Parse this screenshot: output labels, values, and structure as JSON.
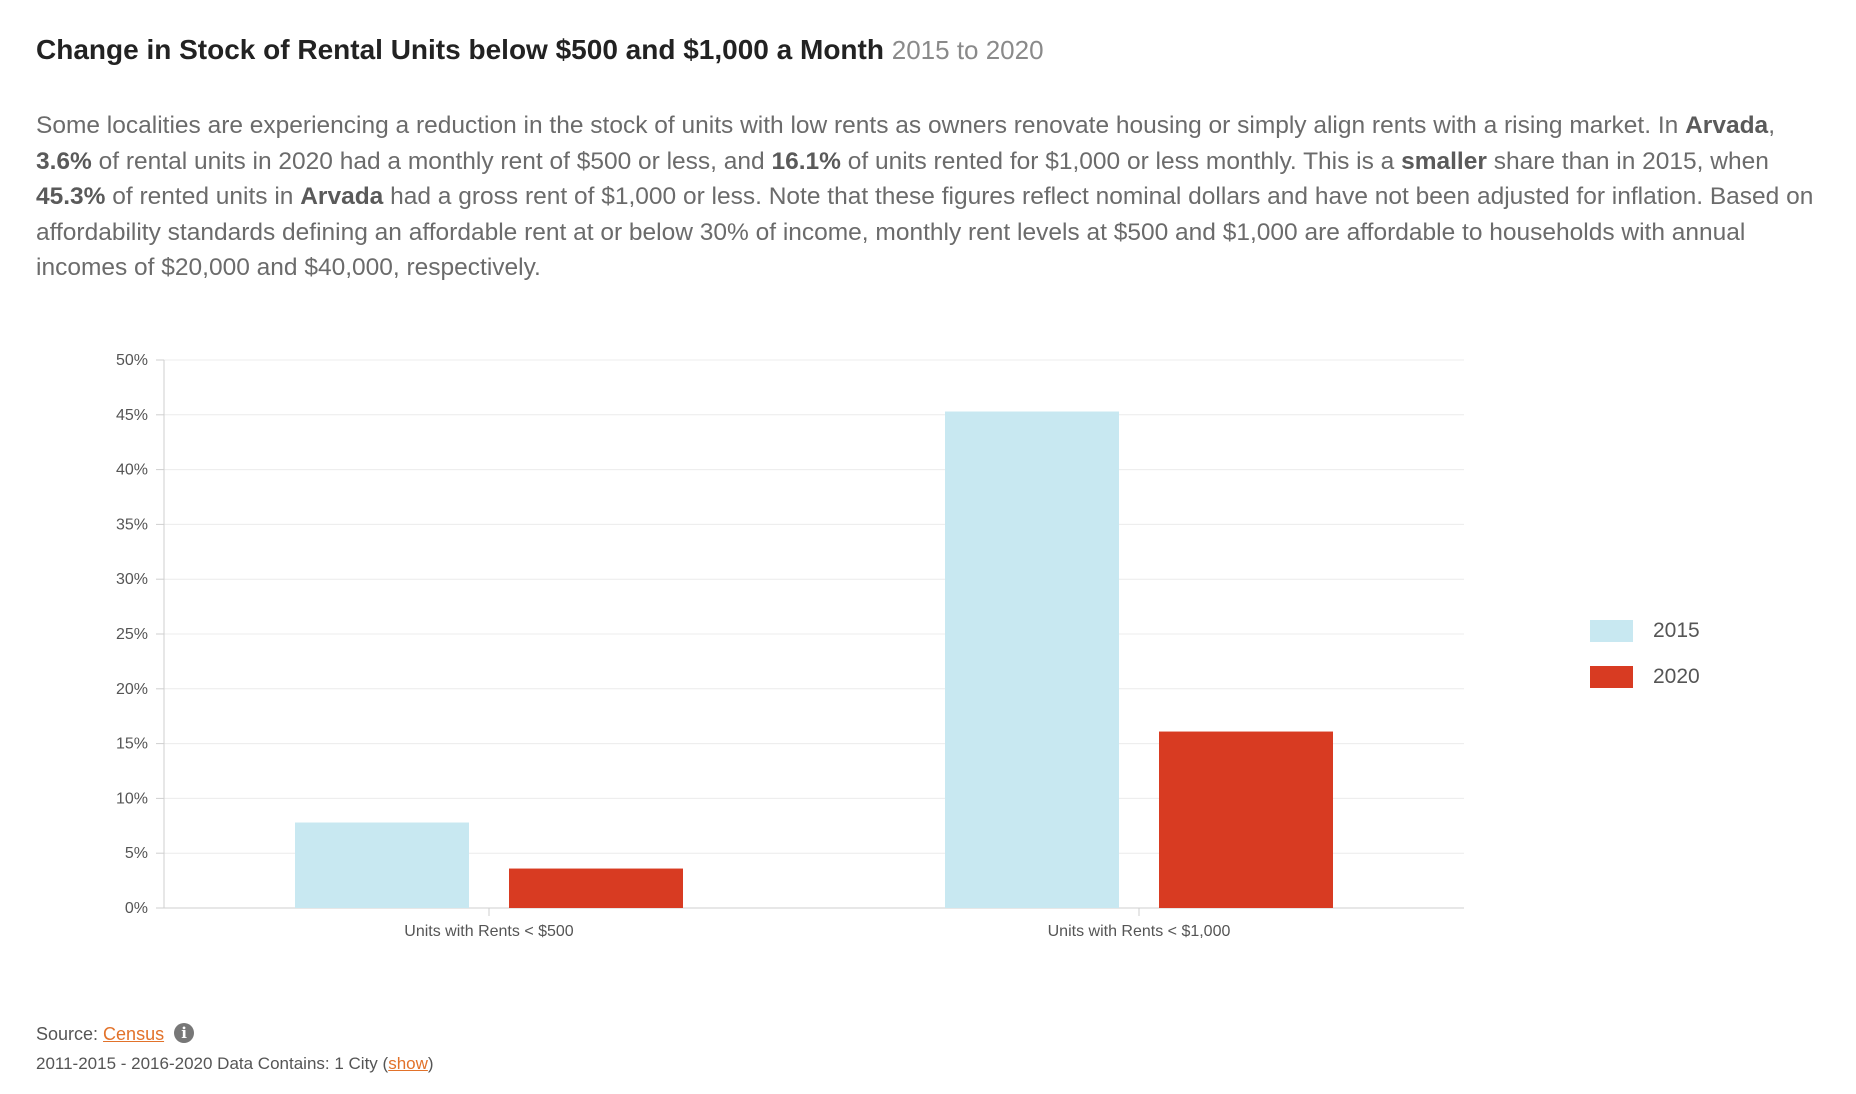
{
  "header": {
    "title": "Change in Stock of Rental Units below $500 and $1,000 a Month",
    "years": "2015 to 2020"
  },
  "description": {
    "s1": "Some localities are experiencing a reduction in the stock of units with low rents as owners renovate housing or simply align rents with a rising market. In ",
    "place1": "Arvada",
    "s2": ", ",
    "pct500": "3.6%",
    "s3": " of rental units in 2020 had a monthly rent of $500 or less, and ",
    "pct1000": "16.1%",
    "s4": " of units rented for $1,000 or less monthly. This is a ",
    "comparison": "smaller",
    "s5": " share than in 2015, when ",
    "pct2015": "45.3%",
    "s6": " of rented units in ",
    "place2": "Arvada",
    "s7": " had a gross rent of $1,000 or less. Note that these figures reflect nominal dollars and have not been adjusted for inflation. Based on affordability standards defining an affordable rent at or below 30% of income, monthly rent levels at $500 and $1,000 are affordable to households with annual incomes of $20,000 and $40,000, respectively."
  },
  "chart_data": {
    "type": "bar",
    "categories": [
      "Units with Rents < $500",
      "Units with Rents < $1,000"
    ],
    "series": [
      {
        "name": "2015",
        "values": [
          7.8,
          45.3
        ],
        "color": "#c8e8f1"
      },
      {
        "name": "2020",
        "values": [
          3.6,
          16.1
        ],
        "color": "#d83b22"
      }
    ],
    "y_ticks": [
      "0%",
      "5%",
      "10%",
      "15%",
      "20%",
      "25%",
      "30%",
      "35%",
      "40%",
      "45%",
      "50%"
    ],
    "ylim": [
      0,
      50
    ],
    "grid": true,
    "legend_position": "right"
  },
  "footer": {
    "source_label": "Source: ",
    "source_link": "Census",
    "info_icon": "i",
    "contains_prefix": "2011-2015 - 2016-2020 Data Contains: 1 City (",
    "contains_link": "show",
    "contains_suffix": ")"
  }
}
